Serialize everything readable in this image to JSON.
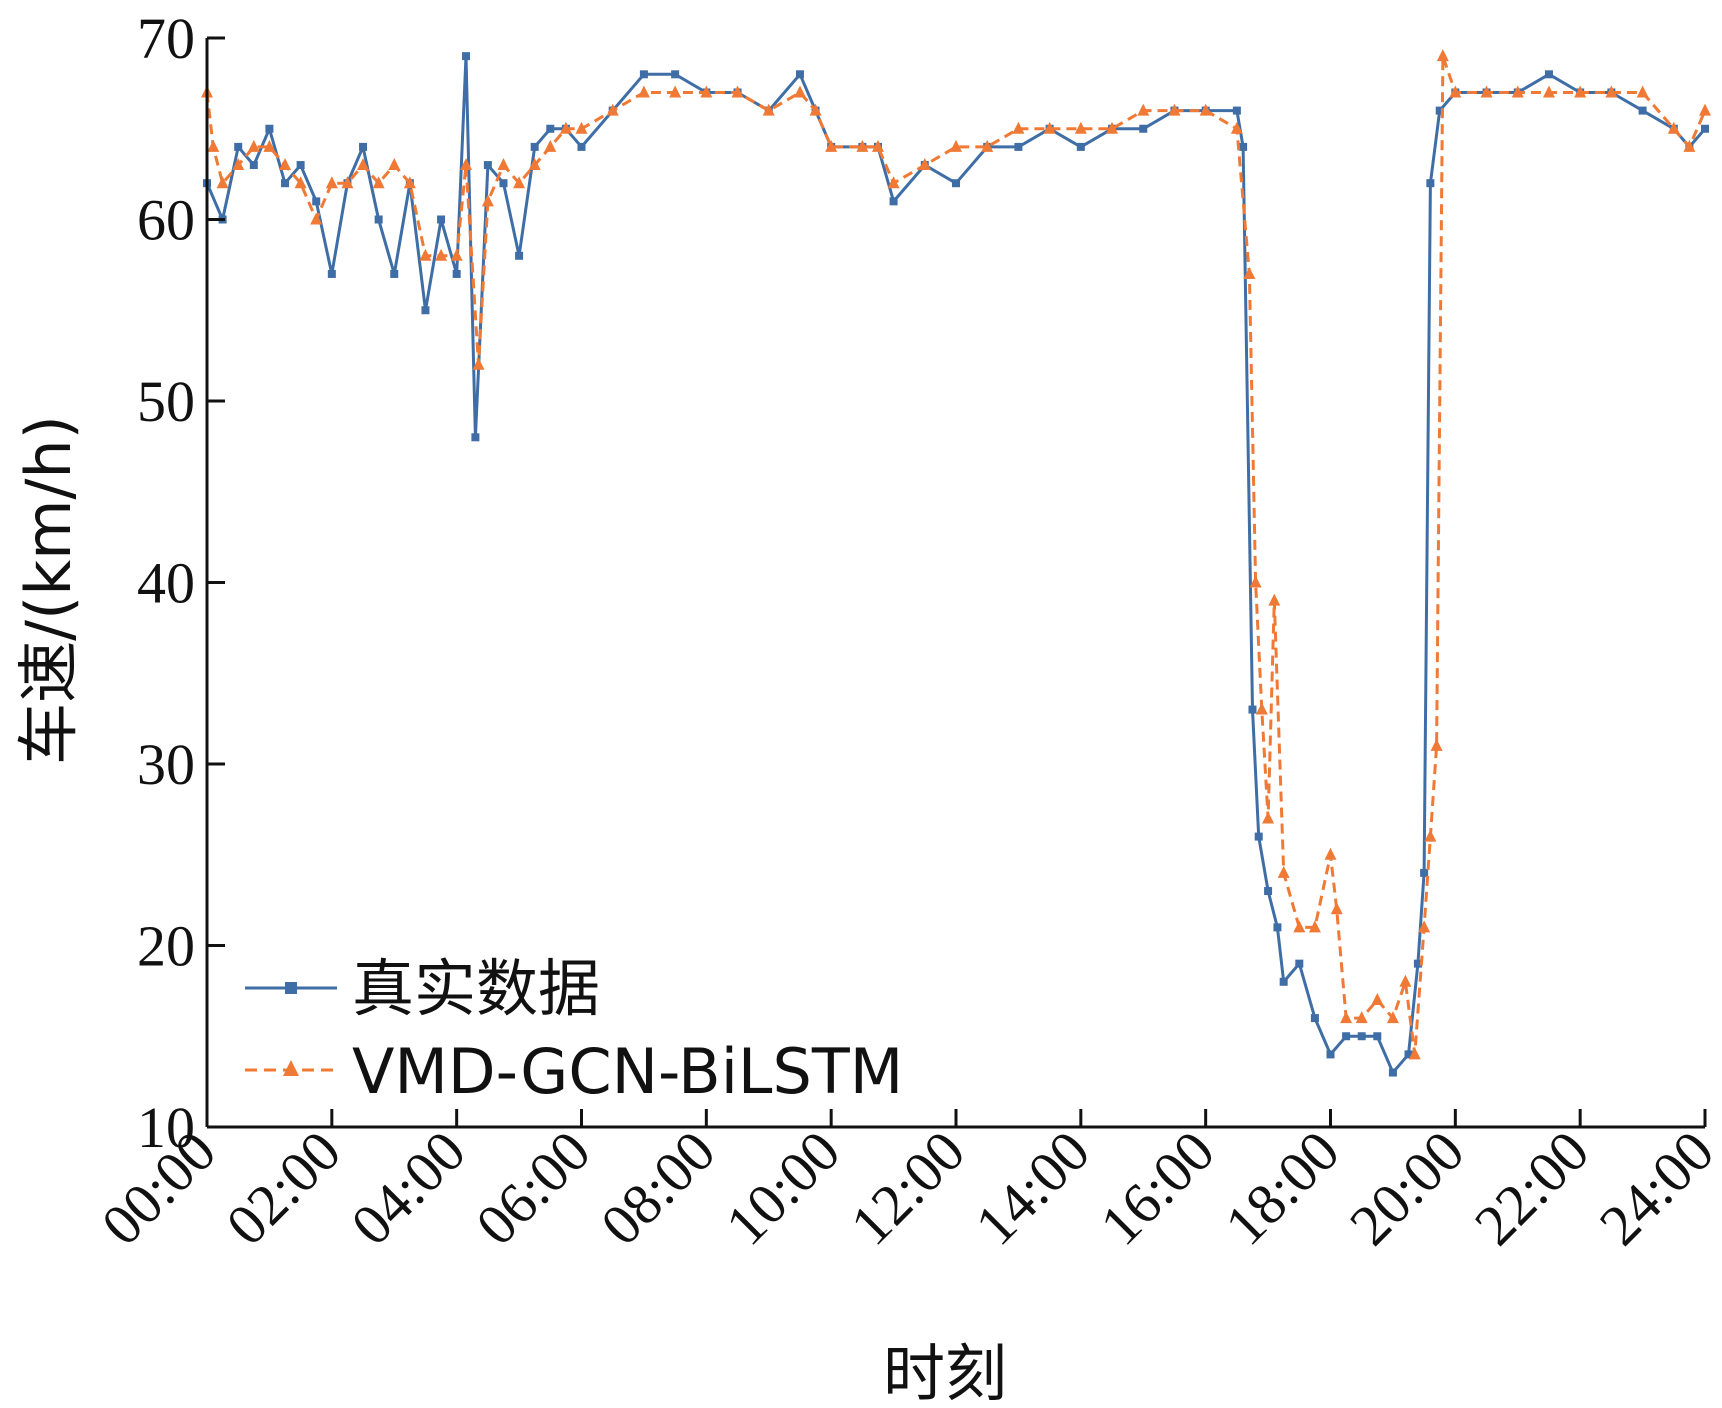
{
  "chart_data": {
    "type": "line",
    "title": "",
    "xlabel": "时刻",
    "ylabel": "车速/(km/h)",
    "x_tick_labels": [
      "00:00",
      "02:00",
      "04:00",
      "06:00",
      "08:00",
      "10:00",
      "12:00",
      "14:00",
      "16:00",
      "18:00",
      "20:00",
      "22:00",
      "24:00"
    ],
    "y_tick_labels": [
      "10",
      "20",
      "30",
      "40",
      "50",
      "60",
      "70"
    ],
    "xlim_hours": [
      0,
      24
    ],
    "ylim": [
      10,
      70
    ],
    "grid": false,
    "legend_position": "bottom-left",
    "series": [
      {
        "name": "真实数据",
        "color": "#3f6ea6",
        "marker": "square",
        "line_style": "solid",
        "x_hours": [
          0.0,
          0.25,
          0.5,
          0.75,
          1.0,
          1.25,
          1.5,
          1.75,
          2.0,
          2.25,
          2.5,
          2.75,
          3.0,
          3.25,
          3.5,
          3.75,
          4.0,
          4.15,
          4.3,
          4.5,
          4.75,
          5.0,
          5.25,
          5.5,
          5.75,
          6.0,
          6.5,
          7.0,
          7.5,
          8.0,
          8.5,
          9.0,
          9.5,
          9.75,
          10.0,
          10.5,
          10.75,
          11.0,
          11.5,
          12.0,
          12.5,
          13.0,
          13.5,
          14.0,
          14.5,
          15.0,
          15.5,
          16.0,
          16.5,
          16.6,
          16.75,
          16.85,
          17.0,
          17.15,
          17.25,
          17.5,
          17.75,
          18.0,
          18.25,
          18.5,
          18.75,
          19.0,
          19.25,
          19.4,
          19.5,
          19.6,
          19.75,
          20.0,
          20.5,
          21.0,
          21.5,
          22.0,
          22.5,
          23.0,
          23.5,
          23.75,
          24.0
        ],
        "y": [
          62,
          60,
          64,
          63,
          65,
          62,
          63,
          61,
          57,
          62,
          64,
          60,
          57,
          62,
          55,
          60,
          57,
          69,
          48,
          63,
          62,
          58,
          64,
          65,
          65,
          64,
          66,
          68,
          68,
          67,
          67,
          66,
          68,
          66,
          64,
          64,
          64,
          61,
          63,
          62,
          64,
          64,
          65,
          64,
          65,
          65,
          66,
          66,
          66,
          64,
          33,
          26,
          23,
          21,
          18,
          19,
          16,
          14,
          15,
          15,
          15,
          13,
          14,
          19,
          24,
          62,
          66,
          67,
          67,
          67,
          68,
          67,
          67,
          66,
          65,
          64,
          65
        ]
      },
      {
        "name": "VMD-GCN-BiLSTM",
        "color": "#f07a35",
        "marker": "triangle",
        "line_style": "dashed",
        "x_hours": [
          0.0,
          0.1,
          0.25,
          0.5,
          0.75,
          1.0,
          1.25,
          1.5,
          1.75,
          2.0,
          2.25,
          2.5,
          2.75,
          3.0,
          3.25,
          3.5,
          3.75,
          4.0,
          4.15,
          4.35,
          4.5,
          4.75,
          5.0,
          5.25,
          5.5,
          5.75,
          6.0,
          6.5,
          7.0,
          7.5,
          8.0,
          8.5,
          9.0,
          9.5,
          9.75,
          10.0,
          10.5,
          10.75,
          11.0,
          11.5,
          12.0,
          12.5,
          13.0,
          13.5,
          14.0,
          14.5,
          15.0,
          15.5,
          16.0,
          16.5,
          16.7,
          16.8,
          16.9,
          17.0,
          17.1,
          17.25,
          17.5,
          17.75,
          18.0,
          18.1,
          18.25,
          18.5,
          18.75,
          19.0,
          19.2,
          19.35,
          19.5,
          19.6,
          19.7,
          19.8,
          20.0,
          20.5,
          21.0,
          21.5,
          22.0,
          22.5,
          23.0,
          23.5,
          23.75,
          24.0
        ],
        "y": [
          67,
          64,
          62,
          63,
          64,
          64,
          63,
          62,
          60,
          62,
          62,
          63,
          62,
          63,
          62,
          58,
          58,
          58,
          63,
          52,
          61,
          63,
          62,
          63,
          64,
          65,
          65,
          66,
          67,
          67,
          67,
          67,
          66,
          67,
          66,
          64,
          64,
          64,
          62,
          63,
          64,
          64,
          65,
          65,
          65,
          65,
          66,
          66,
          66,
          65,
          57,
          40,
          33,
          27,
          39,
          24,
          21,
          21,
          25,
          22,
          16,
          16,
          17,
          16,
          18,
          14,
          21,
          26,
          31,
          69,
          67,
          67,
          67,
          67,
          67,
          67,
          67,
          65,
          64,
          66
        ]
      }
    ]
  }
}
